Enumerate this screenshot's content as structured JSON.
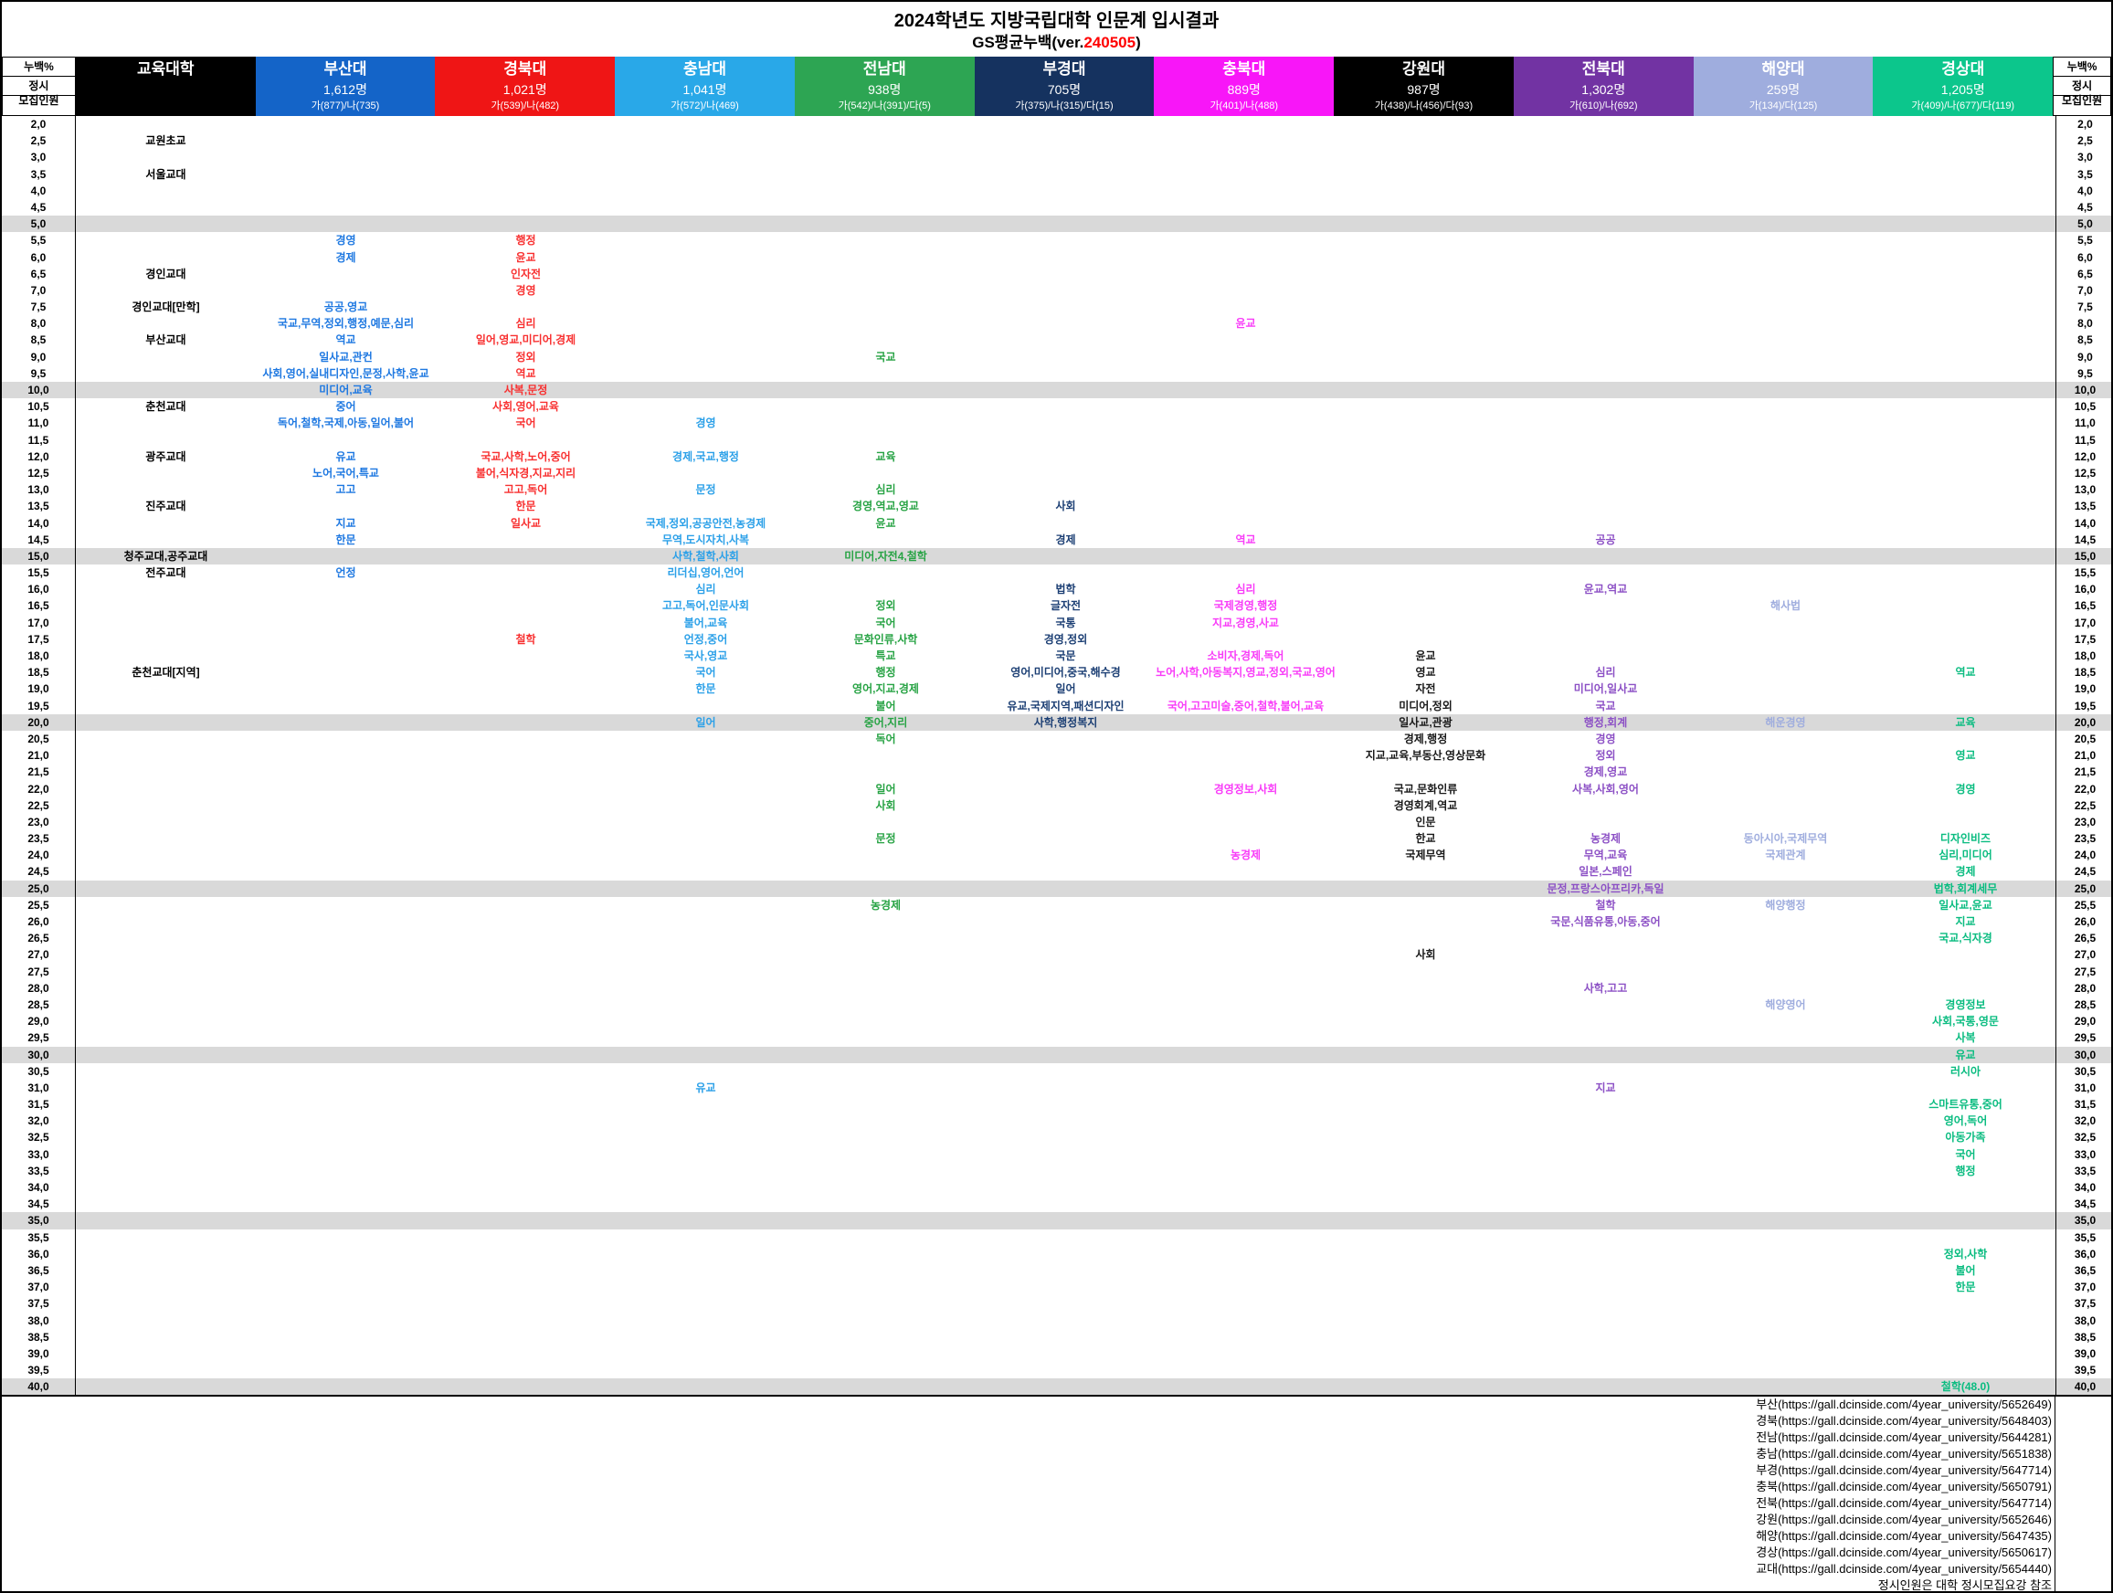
{
  "title": "2024학년도 지방국립대학 인문계 입시결과",
  "subtitle": {
    "prefix": "GS평균누백(ver.",
    "version": "240505",
    "suffix": ")"
  },
  "corner": {
    "top": "누백%",
    "mid": "정시",
    "bottom": "모집인원"
  },
  "edu_header": {
    "label": "교육대학",
    "bg": "#000000"
  },
  "chart_data": {
    "type": "table",
    "universities": [
      {
        "id": "bs",
        "name": "부산대",
        "count": "1,612명",
        "rounds": "가(877)/나(735)",
        "bg": "#1464c8",
        "fg": "#1e78e1"
      },
      {
        "id": "kb",
        "name": "경북대",
        "count": "1,021명",
        "rounds": "가(539)/나(482)",
        "bg": "#ef1515",
        "fg": "#f83030"
      },
      {
        "id": "cn",
        "name": "충남대",
        "count": "1,041명",
        "rounds": "가(572)/나(469)",
        "bg": "#29a8e8",
        "fg": "#2ba0e8"
      },
      {
        "id": "jn",
        "name": "전남대",
        "count": "938명",
        "rounds": "가(542)/나(391)/다(5)",
        "bg": "#2da553",
        "fg": "#27a344"
      },
      {
        "id": "pk",
        "name": "부경대",
        "count": "705명",
        "rounds": "가(375)/나(315)/다(15)",
        "bg": "#15325f",
        "fg": "#1c3f74"
      },
      {
        "id": "cb",
        "name": "충북대",
        "count": "889명",
        "rounds": "가(401)/나(488)",
        "bg": "#f816f8",
        "fg": "#f83cf8"
      },
      {
        "id": "kw",
        "name": "강원대",
        "count": "987명",
        "rounds": "가(438)/나(456)/다(93)",
        "bg": "#000000",
        "fg": "#191919"
      },
      {
        "id": "jb",
        "name": "전북대",
        "count": "1,302명",
        "rounds": "가(610)/나(692)",
        "bg": "#7233a3",
        "fg": "#8c50c5"
      },
      {
        "id": "hy",
        "name": "해양대",
        "count": "259명",
        "rounds": "가(134)/다(125)",
        "bg": "#9fadde",
        "fg": "#9fadde"
      },
      {
        "id": "gs",
        "name": "경상대",
        "count": "1,205명",
        "rounds": "가(409)/나(677)/다(119)",
        "bg": "#0cc68c",
        "fg": "#0abc80"
      }
    ],
    "rows": [
      {
        "p": "2,0",
        "shade": false,
        "cells": {}
      },
      {
        "p": "2,5",
        "shade": false,
        "cells": {
          "e": "교원초교"
        }
      },
      {
        "p": "3,0",
        "shade": false,
        "cells": {}
      },
      {
        "p": "3,5",
        "shade": false,
        "cells": {
          "e": "서울교대"
        }
      },
      {
        "p": "4,0",
        "shade": false,
        "cells": {}
      },
      {
        "p": "4,5",
        "shade": false,
        "cells": {}
      },
      {
        "p": "5,0",
        "shade": true,
        "cells": {}
      },
      {
        "p": "5,5",
        "shade": false,
        "cells": {
          "bs": "경영",
          "kb": "행정"
        }
      },
      {
        "p": "6,0",
        "shade": false,
        "cells": {
          "bs": "경제",
          "kb": "윤교"
        }
      },
      {
        "p": "6,5",
        "shade": false,
        "cells": {
          "e": "경인교대",
          "kb": "인자전"
        }
      },
      {
        "p": "7,0",
        "shade": false,
        "cells": {
          "kb": "경영"
        }
      },
      {
        "p": "7,5",
        "shade": false,
        "cells": {
          "e": "경인교대[만학]",
          "bs": "공공,영교"
        }
      },
      {
        "p": "8,0",
        "shade": false,
        "cells": {
          "bs": "국교,무역,정외,행정,예문,심리",
          "kb": "심리",
          "cb": "윤교"
        }
      },
      {
        "p": "8,5",
        "shade": false,
        "cells": {
          "e": "부산교대",
          "bs": "역교",
          "kb": "일어,영교,미디어,경제"
        }
      },
      {
        "p": "9,0",
        "shade": false,
        "cells": {
          "bs": "일사교,관컨",
          "kb": "정외",
          "jn": "국교"
        }
      },
      {
        "p": "9,5",
        "shade": false,
        "cells": {
          "bs": "사회,영어,실내디자인,문정,사학,윤교",
          "kb": "역교"
        }
      },
      {
        "p": "10,0",
        "shade": true,
        "cells": {
          "bs": "미디어,교육",
          "kb": "사복,문정"
        }
      },
      {
        "p": "10,5",
        "shade": false,
        "cells": {
          "e": "춘천교대",
          "bs": "중어",
          "kb": "사회,영어,교육"
        }
      },
      {
        "p": "11,0",
        "shade": false,
        "cells": {
          "bs": "독어,철학,국제,아동,일어,불어",
          "kb": "국어",
          "cn": "경영"
        }
      },
      {
        "p": "11,5",
        "shade": false,
        "cells": {}
      },
      {
        "p": "12,0",
        "shade": false,
        "cells": {
          "e": "광주교대",
          "bs": "유교",
          "kb": "국교,사학,노어,중어",
          "cn": "경제,국교,행정",
          "jn": "교육"
        }
      },
      {
        "p": "12,5",
        "shade": false,
        "cells": {
          "bs": "노어,국어,특교",
          "kb": "불어,식자경,지교,지리"
        }
      },
      {
        "p": "13,0",
        "shade": false,
        "cells": {
          "bs": "고고",
          "kb": "고고,독어",
          "cn": "문정",
          "jn": "심리"
        }
      },
      {
        "p": "13,5",
        "shade": false,
        "cells": {
          "e": "진주교대",
          "kb": "한문",
          "jn": "경영,역교,영교",
          "pk": "사회"
        }
      },
      {
        "p": "14,0",
        "shade": false,
        "cells": {
          "bs": "지교",
          "kb": "일사교",
          "cn": "국제,정외,공공안전,농경제",
          "jn": "윤교"
        }
      },
      {
        "p": "14,5",
        "shade": false,
        "cells": {
          "bs": "한문",
          "cn": "무역,도시자치,사복",
          "pk": "경제",
          "cb": "역교",
          "jb": "공공"
        }
      },
      {
        "p": "15,0",
        "shade": true,
        "cells": {
          "e": "청주교대,공주교대",
          "cn": "사학,철학,사회",
          "jn": "미디어,자전4,철학"
        }
      },
      {
        "p": "15,5",
        "shade": false,
        "cells": {
          "e": "전주교대",
          "bs": "언정",
          "cn": "리더십,영어,언어"
        }
      },
      {
        "p": "16,0",
        "shade": false,
        "cells": {
          "cn": "심리",
          "pk": "법학",
          "cb": "심리",
          "jb": "윤교,역교"
        }
      },
      {
        "p": "16,5",
        "shade": false,
        "cells": {
          "cn": "고고,독어,인문사회",
          "jn": "정외",
          "pk": "글자전",
          "cb": "국제경영,행정",
          "hy": "해사법"
        }
      },
      {
        "p": "17,0",
        "shade": false,
        "cells": {
          "cn": "불어,교육",
          "jn": "국어",
          "pk": "국통",
          "cb": "지교,경영,사교"
        }
      },
      {
        "p": "17,5",
        "shade": false,
        "cells": {
          "kb": "철학",
          "cn": "언정,중어",
          "jn": "문화인류,사학",
          "pk": "경영,정외"
        }
      },
      {
        "p": "18,0",
        "shade": false,
        "cells": {
          "cn": "국사,영교",
          "jn": "특교",
          "pk": "국문",
          "cb": "소비자,경제,독어",
          "kw": "윤교"
        }
      },
      {
        "p": "18,5",
        "shade": false,
        "cells": {
          "e": "춘천교대[지역]",
          "cn": "국어",
          "jn": "행정",
          "pk": "영어,미디어,중국,해수경",
          "cb": "노어,사학,아동복지,영교,정외,국교,영어",
          "kw": "영교",
          "jb": "심리",
          "gs": "역교"
        }
      },
      {
        "p": "19,0",
        "shade": false,
        "cells": {
          "cn": "한문",
          "jn": "영어,지교,경제",
          "pk": "일어",
          "kw": "자전",
          "jb": "미디어,일사교"
        }
      },
      {
        "p": "19,5",
        "shade": false,
        "cells": {
          "jn": "불어",
          "pk": "유교,국제지역,패션디자인",
          "cb": "국어,고고미술,중어,철학,불어,교육",
          "kw": "미디어,정외",
          "jb": "국교"
        }
      },
      {
        "p": "20,0",
        "shade": true,
        "cells": {
          "cn": "일어",
          "jn": "중어,지리",
          "pk": "사학,행정복지",
          "kw": "일사교,관광",
          "jb": "행정,회계",
          "hy": "해운경영",
          "gs": "교육"
        }
      },
      {
        "p": "20,5",
        "shade": false,
        "cells": {
          "jn": "독어",
          "kw": "경제,행정",
          "jb": "경영"
        }
      },
      {
        "p": "21,0",
        "shade": false,
        "cells": {
          "kw": "지교,교육,부동산,영상문화",
          "jb": "정외",
          "gs": "영교"
        }
      },
      {
        "p": "21,5",
        "shade": false,
        "cells": {
          "jb": "경제,영교"
        }
      },
      {
        "p": "22,0",
        "shade": false,
        "cells": {
          "jn": "일어",
          "cb": "경영정보,사회",
          "kw": "국교,문화인류",
          "jb": "사복,사회,영어",
          "gs": "경영"
        }
      },
      {
        "p": "22,5",
        "shade": false,
        "cells": {
          "jn": "사회",
          "kw": "경영회계,역교"
        }
      },
      {
        "p": "23,0",
        "shade": false,
        "cells": {
          "kw": "인문"
        }
      },
      {
        "p": "23,5",
        "shade": false,
        "cells": {
          "jn": "문정",
          "kw": "한교",
          "jb": "농경제",
          "hy": "동아시아,국제무역",
          "gs": "디자인비즈"
        }
      },
      {
        "p": "24,0",
        "shade": false,
        "cells": {
          "cb": "농경제",
          "kw": "국제무역",
          "jb": "무역,교육",
          "hy": "국제관계",
          "gs": "심리,미디어"
        }
      },
      {
        "p": "24,5",
        "shade": false,
        "cells": {
          "jb": "일본,스페인",
          "gs": "경제"
        }
      },
      {
        "p": "25,0",
        "shade": true,
        "cells": {
          "jb": "문정,프랑스아프리카,독일",
          "gs": "법학,회계세무"
        }
      },
      {
        "p": "25,5",
        "shade": false,
        "cells": {
          "jn": "농경제",
          "jb": "철학",
          "hy": "해양행정",
          "gs": "일사교,윤교"
        }
      },
      {
        "p": "26,0",
        "shade": false,
        "cells": {
          "jb": "국문,식품유통,아동,중어",
          "gs": "지교"
        }
      },
      {
        "p": "26,5",
        "shade": false,
        "cells": {
          "gs": "국교,식자경"
        }
      },
      {
        "p": "27,0",
        "shade": false,
        "cells": {
          "kw": "사회"
        }
      },
      {
        "p": "27,5",
        "shade": false,
        "cells": {}
      },
      {
        "p": "28,0",
        "shade": false,
        "cells": {
          "jb": "사학,고고"
        }
      },
      {
        "p": "28,5",
        "shade": false,
        "cells": {
          "hy": "해양영어",
          "gs": "경영정보"
        }
      },
      {
        "p": "29,0",
        "shade": false,
        "cells": {
          "gs": "사회,국통,영문"
        }
      },
      {
        "p": "29,5",
        "shade": false,
        "cells": {
          "gs": "사복"
        }
      },
      {
        "p": "30,0",
        "shade": true,
        "cells": {
          "gs": "유교"
        }
      },
      {
        "p": "30,5",
        "shade": false,
        "cells": {
          "gs": "러시아"
        }
      },
      {
        "p": "31,0",
        "shade": false,
        "cells": {
          "cn": "유교",
          "jb": "지교"
        }
      },
      {
        "p": "31,5",
        "shade": false,
        "cells": {
          "gs": "스마트유통,중어"
        }
      },
      {
        "p": "32,0",
        "shade": false,
        "cells": {
          "gs": "영어,독어"
        }
      },
      {
        "p": "32,5",
        "shade": false,
        "cells": {
          "gs": "아동가족"
        }
      },
      {
        "p": "33,0",
        "shade": false,
        "cells": {
          "gs": "국어"
        }
      },
      {
        "p": "33,5",
        "shade": false,
        "cells": {
          "gs": "행정"
        }
      },
      {
        "p": "34,0",
        "shade": false,
        "cells": {}
      },
      {
        "p": "34,5",
        "shade": false,
        "cells": {}
      },
      {
        "p": "35,0",
        "shade": true,
        "cells": {}
      },
      {
        "p": "35,5",
        "shade": false,
        "cells": {}
      },
      {
        "p": "36,0",
        "shade": false,
        "cells": {
          "gs": "정외,사학"
        }
      },
      {
        "p": "36,5",
        "shade": false,
        "cells": {
          "gs": "불어"
        }
      },
      {
        "p": "37,0",
        "shade": false,
        "cells": {
          "gs": "한문"
        }
      },
      {
        "p": "37,5",
        "shade": false,
        "cells": {}
      },
      {
        "p": "38,0",
        "shade": false,
        "cells": {}
      },
      {
        "p": "38,5",
        "shade": false,
        "cells": {}
      },
      {
        "p": "39,0",
        "shade": false,
        "cells": {}
      },
      {
        "p": "39,5",
        "shade": false,
        "cells": {}
      },
      {
        "p": "40,0",
        "shade": true,
        "cells": {
          "gs": "철학(48.0)"
        }
      }
    ]
  },
  "footer": {
    "lines": [
      "부산(https://gall.dcinside.com/4year_university/5652649)",
      "경북(https://gall.dcinside.com/4year_university/5648403)",
      "전남(https://gall.dcinside.com/4year_university/5644281)",
      "충남(https://gall.dcinside.com/4year_university/5651838)",
      "부경(https://gall.dcinside.com/4year_university/5647714)",
      "충북(https://gall.dcinside.com/4year_university/5650791)",
      "전북(https://gall.dcinside.com/4year_university/5647714)",
      "강원(https://gall.dcinside.com/4year_university/5652646)",
      "해양(https://gall.dcinside.com/4year_university/5647435)",
      "경상(https://gall.dcinside.com/4year_university/5650617)",
      "교대(https://gall.dcinside.com/4year_university/5654440)",
      "정시인원은 대학 정시모집요강 참조"
    ]
  }
}
